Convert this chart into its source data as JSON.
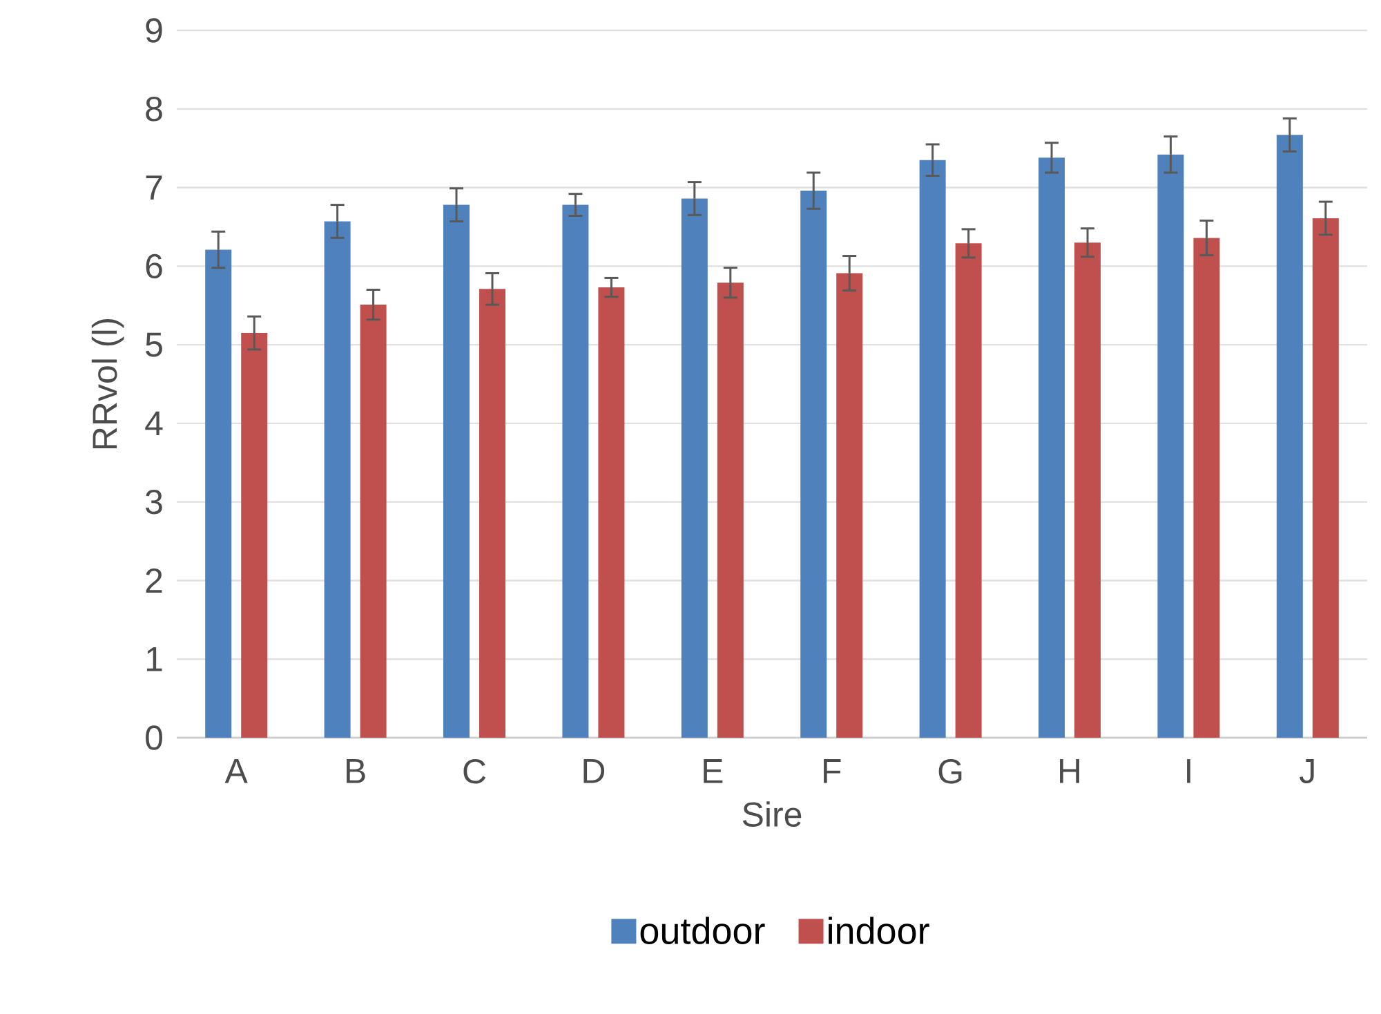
{
  "chart_data": {
    "type": "bar",
    "xlabel": "Sire",
    "ylabel": "RRvol (l)",
    "categories": [
      "A",
      "B",
      "C",
      "D",
      "E",
      "F",
      "G",
      "H",
      "I",
      "J"
    ],
    "series": [
      {
        "name": "outdoor",
        "color": "#4f81bd",
        "values": [
          6.21,
          6.57,
          6.78,
          6.78,
          6.86,
          6.96,
          7.35,
          7.38,
          7.42,
          7.67
        ],
        "errors": [
          0.23,
          0.21,
          0.21,
          0.14,
          0.21,
          0.23,
          0.2,
          0.19,
          0.23,
          0.21
        ]
      },
      {
        "name": "indoor",
        "color": "#c0504d",
        "values": [
          5.15,
          5.51,
          5.71,
          5.73,
          5.79,
          5.91,
          6.29,
          6.3,
          6.36,
          6.61
        ],
        "errors": [
          0.21,
          0.19,
          0.2,
          0.12,
          0.19,
          0.22,
          0.18,
          0.18,
          0.22,
          0.21
        ]
      }
    ],
    "ylim": [
      0,
      9
    ],
    "yticks": [
      0,
      1,
      2,
      3,
      4,
      5,
      6,
      7,
      8,
      9
    ],
    "grid": "y",
    "legend": "bottom"
  }
}
